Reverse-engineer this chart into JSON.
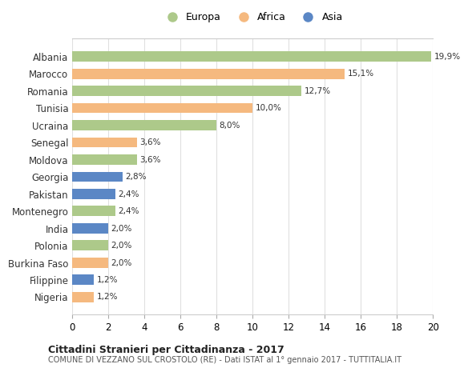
{
  "countries": [
    "Albania",
    "Marocco",
    "Romania",
    "Tunisia",
    "Ucraina",
    "Senegal",
    "Moldova",
    "Georgia",
    "Pakistan",
    "Montenegro",
    "India",
    "Polonia",
    "Burkina Faso",
    "Filippine",
    "Nigeria"
  ],
  "values": [
    19.9,
    15.1,
    12.7,
    10.0,
    8.0,
    3.6,
    3.6,
    2.8,
    2.4,
    2.4,
    2.0,
    2.0,
    2.0,
    1.2,
    1.2
  ],
  "labels": [
    "19,9%",
    "15,1%",
    "12,7%",
    "10,0%",
    "8,0%",
    "3,6%",
    "3,6%",
    "2,8%",
    "2,4%",
    "2,4%",
    "2,0%",
    "2,0%",
    "2,0%",
    "1,2%",
    "1,2%"
  ],
  "continents": [
    "Europa",
    "Africa",
    "Europa",
    "Africa",
    "Europa",
    "Africa",
    "Europa",
    "Asia",
    "Asia",
    "Europa",
    "Asia",
    "Europa",
    "Africa",
    "Asia",
    "Africa"
  ],
  "colors": {
    "Europa": "#adc98a",
    "Africa": "#f5b97f",
    "Asia": "#5b87c5"
  },
  "legend_order": [
    "Europa",
    "Africa",
    "Asia"
  ],
  "title": "Cittadini Stranieri per Cittadinanza - 2017",
  "subtitle": "COMUNE DI VEZZANO SUL CROSTOLO (RE) - Dati ISTAT al 1° gennaio 2017 - TUTTITALIA.IT",
  "xlim": [
    0,
    20
  ],
  "xticks": [
    0,
    2,
    4,
    6,
    8,
    10,
    12,
    14,
    16,
    18,
    20
  ],
  "bg_color": "#ffffff",
  "grid_color": "#e0e0e0",
  "bar_height": 0.6
}
